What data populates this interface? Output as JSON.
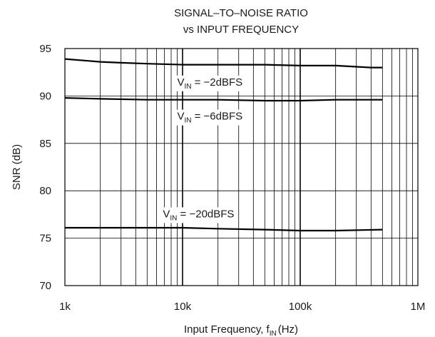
{
  "chart_data": {
    "type": "line",
    "title": "SIGNAL–TO–NOISE RATIO",
    "subtitle": "vs INPUT FREQUENCY",
    "xlabel": "Input Frequency, f",
    "xlabel_sub": "IN",
    "xlabel_unit": "(Hz)",
    "ylabel": "SNR (dB)",
    "x_scale": "log",
    "xlim": [
      1000,
      1000000
    ],
    "ylim": [
      70,
      95
    ],
    "grid": true,
    "x_ticks": [
      {
        "value": 1000,
        "label": "1k"
      },
      {
        "value": 10000,
        "label": "10k"
      },
      {
        "value": 100000,
        "label": "100k"
      },
      {
        "value": 1000000,
        "label": "1M"
      }
    ],
    "y_ticks": [
      {
        "value": 70,
        "label": "70"
      },
      {
        "value": 75,
        "label": "75"
      },
      {
        "value": 80,
        "label": "80"
      },
      {
        "value": 85,
        "label": "85"
      },
      {
        "value": 90,
        "label": "90"
      },
      {
        "value": 95,
        "label": "95"
      }
    ],
    "series": [
      {
        "x": [
          1000,
          2000,
          3000,
          5000,
          10000,
          20000,
          50000,
          100000,
          200000,
          400000,
          500000
        ],
        "y": [
          93.9,
          93.6,
          93.5,
          93.4,
          93.3,
          93.3,
          93.3,
          93.2,
          93.2,
          93.0,
          93.0
        ],
        "color": "#000000"
      },
      {
        "x": [
          1000,
          2000,
          5000,
          10000,
          20000,
          50000,
          100000,
          200000,
          500000
        ],
        "y": [
          89.8,
          89.7,
          89.6,
          89.6,
          89.6,
          89.5,
          89.5,
          89.6,
          89.6
        ],
        "color": "#000000"
      },
      {
        "x": [
          1000,
          2000,
          5000,
          10000,
          20000,
          50000,
          100000,
          200000,
          500000
        ],
        "y": [
          76.1,
          76.1,
          76.1,
          76.1,
          76.0,
          75.9,
          75.8,
          75.8,
          75.9
        ],
        "color": "#000000"
      }
    ],
    "annotations": [
      {
        "text_prefix": "V",
        "text_sub": "IN",
        "text_suffix": " = −2dBFS",
        "x": 9000,
        "y": 91.1
      },
      {
        "text_prefix": "V",
        "text_sub": "IN",
        "text_suffix": " = −6dBFS",
        "x": 9000,
        "y": 87.5
      },
      {
        "text_prefix": "V",
        "text_sub": "IN",
        "text_suffix": " = −20dBFS",
        "x": 6800,
        "y": 77.2
      }
    ]
  }
}
